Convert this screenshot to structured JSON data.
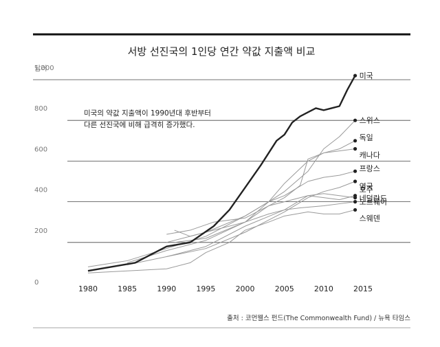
{
  "chart_data": {
    "type": "line",
    "title": "서방 선진국의 1인당 연간 약값 지출액 비교",
    "ylabel": "달러",
    "xlabel": "",
    "xlim": [
      1980,
      2015
    ],
    "ylim": [
      0,
      1000
    ],
    "x_ticks": [
      1980,
      1985,
      1990,
      1995,
      2000,
      2005,
      2010,
      2015
    ],
    "y_ticks": [
      0,
      200,
      400,
      600,
      800,
      1000
    ],
    "y_tick_labels": [
      "0",
      "200",
      "400",
      "600",
      "800",
      "1,000"
    ],
    "grid": true,
    "annotation": [
      "미국의 약값 지출액이 1990년대 후반부터",
      "다른 선진국에 비해 급격히 증가했다."
    ],
    "source": "출처 : 코먼웰스 펀드(The Commonwealth Fund) / 뉴욕 타임스",
    "series": [
      {
        "name": "미국",
        "highlight": true,
        "color": "#222222",
        "x": [
          1980,
          1983,
          1986,
          1990,
          1993,
          1996,
          1998,
          2000,
          2002,
          2004,
          2005,
          2006,
          2007,
          2008,
          2009,
          2010,
          2011,
          2012,
          2013,
          2014
        ],
        "y": [
          60,
          80,
          100,
          180,
          200,
          280,
          360,
          470,
          580,
          700,
          730,
          790,
          820,
          840,
          860,
          850,
          860,
          870,
          950,
          1020
        ]
      },
      {
        "name": "스위스",
        "color": "#999999",
        "x": [
          1990,
          1995,
          2000,
          2003,
          2005,
          2008,
          2010,
          2012,
          2014
        ],
        "y": [
          200,
          250,
          330,
          400,
          450,
          550,
          660,
          720,
          800
        ]
      },
      {
        "name": "독일",
        "color": "#999999",
        "x": [
          1991,
          1995,
          2000,
          2003,
          2005,
          2007,
          2008,
          2010,
          2012,
          2014
        ],
        "y": [
          200,
          220,
          300,
          380,
          420,
          480,
          610,
          640,
          660,
          700
        ]
      },
      {
        "name": "캐나다",
        "color": "#999999",
        "x": [
          1985,
          1990,
          1995,
          2000,
          2003,
          2005,
          2008,
          2010,
          2012,
          2014
        ],
        "y": [
          100,
          160,
          210,
          300,
          400,
          490,
          600,
          640,
          650,
          660
        ]
      },
      {
        "name": "프랑스",
        "color": "#999999",
        "x": [
          1980,
          1985,
          1990,
          1995,
          2000,
          2003,
          2005,
          2008,
          2010,
          2012,
          2014
        ],
        "y": [
          80,
          110,
          170,
          230,
          330,
          400,
          430,
          500,
          520,
          530,
          550
        ]
      },
      {
        "name": "영국",
        "color": "#999999",
        "x": [
          1990,
          1995,
          2000,
          2003,
          2005,
          2008,
          2010,
          2012,
          2014
        ],
        "y": [
          130,
          170,
          250,
          310,
          350,
          420,
          450,
          470,
          500
        ]
      },
      {
        "name": "호주",
        "color": "#999999",
        "x": [
          1985,
          1990,
          1995,
          2000,
          2005,
          2008,
          2010,
          2012,
          2014
        ],
        "y": [
          90,
          130,
          180,
          280,
          360,
          430,
          420,
          410,
          430
        ]
      },
      {
        "name": "네덜란드",
        "color": "#999999",
        "x": [
          1990,
          1993,
          1996,
          2000,
          2003,
          2005,
          2008,
          2010,
          2012,
          2014
        ],
        "y": [
          240,
          260,
          300,
          320,
          380,
          400,
          430,
          440,
          430,
          420
        ]
      },
      {
        "name": "노르웨이",
        "color": "#999999",
        "x": [
          1991,
          1993,
          1996,
          2000,
          2003,
          2005,
          2007,
          2010,
          2012,
          2014
        ],
        "y": [
          260,
          230,
          260,
          300,
          340,
          360,
          370,
          380,
          390,
          400
        ]
      },
      {
        "name": "스웨덴",
        "color": "#999999",
        "x": [
          1980,
          1985,
          1990,
          1993,
          1995,
          1998,
          2000,
          2003,
          2005,
          2008,
          2010,
          2012,
          2014
        ],
        "y": [
          50,
          60,
          70,
          100,
          150,
          200,
          260,
          300,
          330,
          350,
          340,
          340,
          360
        ]
      }
    ]
  }
}
